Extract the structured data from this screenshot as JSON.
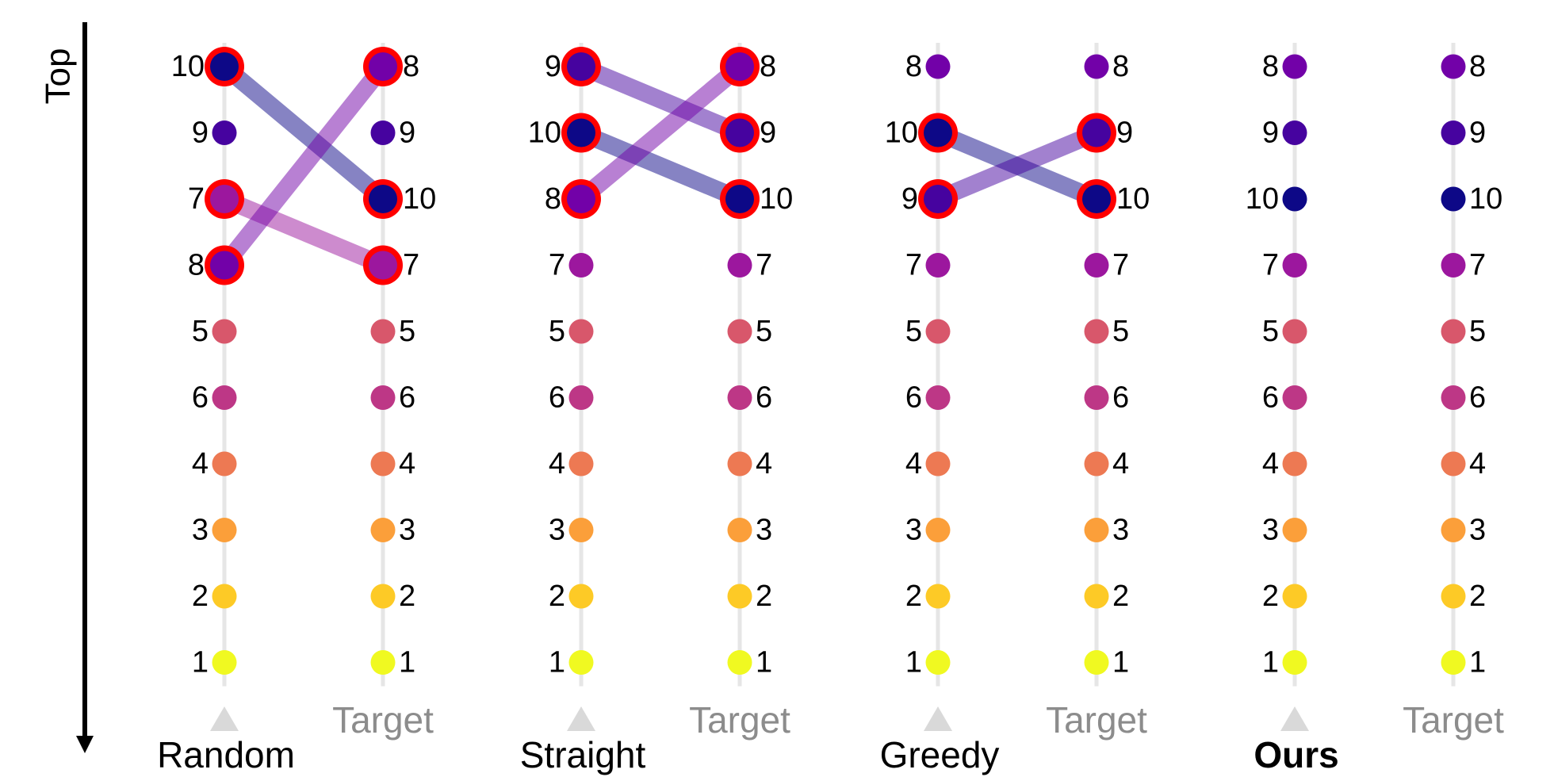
{
  "axis": {
    "label": "Top"
  },
  "colors": {
    "1": "#f0f921",
    "2": "#fdca26",
    "3": "#fb9f3a",
    "4": "#ed7953",
    "5": "#d8576b",
    "6": "#bd3786",
    "7": "#9c179e",
    "8": "#7201a8",
    "9": "#46039f",
    "10": "#0d0887",
    "rail": "#e6e6e6",
    "highlight": "#ff0000",
    "target_text": "#8c8c8c",
    "marker": "#d9d9d9"
  },
  "marker_icon": "triangle-up-icon",
  "panels": [
    {
      "name": "Random",
      "bold": false,
      "target_label": "Target",
      "left": [
        10,
        9,
        7,
        8,
        5,
        6,
        4,
        3,
        2,
        1
      ],
      "right": [
        8,
        9,
        10,
        7,
        5,
        6,
        4,
        3,
        2,
        1
      ],
      "highlight": [
        10,
        7,
        8
      ]
    },
    {
      "name": "Straight",
      "bold": false,
      "target_label": "Target",
      "left": [
        9,
        10,
        8,
        7,
        5,
        6,
        4,
        3,
        2,
        1
      ],
      "right": [
        8,
        9,
        10,
        7,
        5,
        6,
        4,
        3,
        2,
        1
      ],
      "highlight": [
        9,
        10,
        8
      ]
    },
    {
      "name": "Greedy",
      "bold": false,
      "target_label": "Target",
      "left": [
        8,
        10,
        9,
        7,
        5,
        6,
        4,
        3,
        2,
        1
      ],
      "right": [
        8,
        9,
        10,
        7,
        5,
        6,
        4,
        3,
        2,
        1
      ],
      "highlight": [
        10,
        9
      ]
    },
    {
      "name": "Ours",
      "bold": true,
      "target_label": "Target",
      "left": [
        8,
        9,
        10,
        7,
        5,
        6,
        4,
        3,
        2,
        1
      ],
      "right": [
        8,
        9,
        10,
        7,
        5,
        6,
        4,
        3,
        2,
        1
      ],
      "highlight": []
    }
  ]
}
